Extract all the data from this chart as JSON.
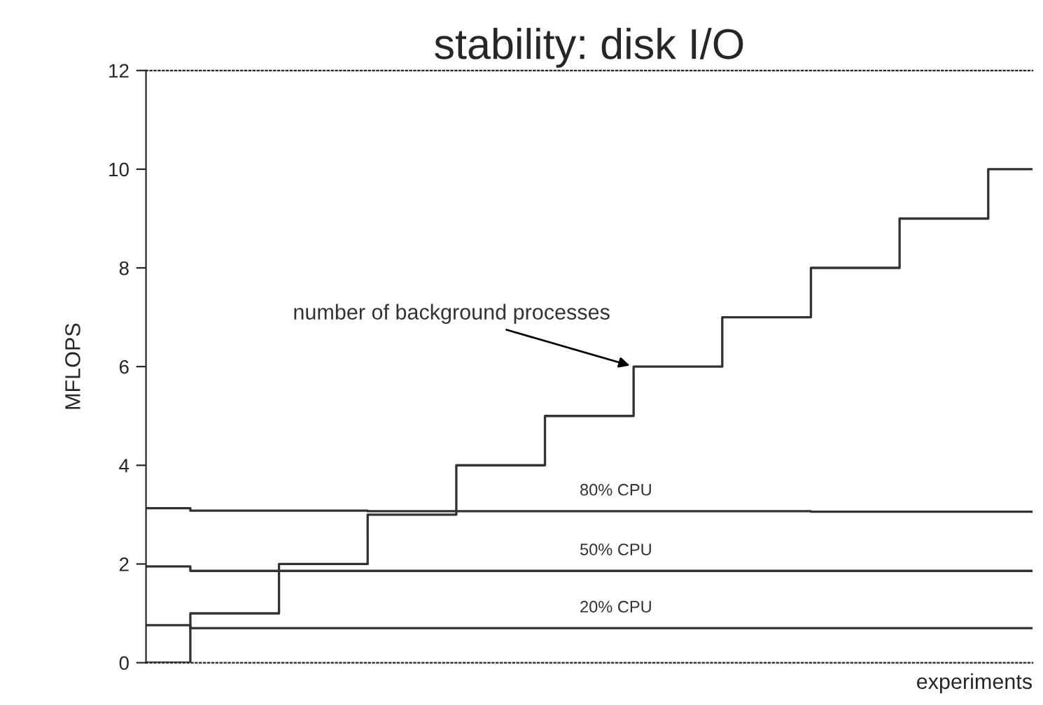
{
  "chart_data": {
    "type": "step",
    "title": "stability: disk I/O",
    "xlabel": "experiments",
    "ylabel": "MFLOPS",
    "categories": [
      null,
      null,
      null,
      null,
      null,
      null,
      null,
      null,
      null,
      null,
      null
    ],
    "series": [
      {
        "name": "number of background processes",
        "color": "#333333",
        "values": [
          0,
          1,
          2,
          3,
          4,
          5,
          6,
          7,
          8,
          9,
          10
        ]
      },
      {
        "name": "80% CPU",
        "color": "#333333",
        "values": [
          3.13,
          3.08,
          3.08,
          3.07,
          3.07,
          3.07,
          3.07,
          3.07,
          3.06,
          3.06,
          3.06
        ]
      },
      {
        "name": "50% CPU",
        "color": "#333333",
        "values": [
          1.95,
          1.86,
          1.86,
          1.86,
          1.86,
          1.86,
          1.86,
          1.86,
          1.86,
          1.86,
          1.86
        ]
      },
      {
        "name": "20% CPU",
        "color": "#333333",
        "values": [
          0.76,
          0.7,
          0.7,
          0.7,
          0.7,
          0.7,
          0.7,
          0.7,
          0.7,
          0.7,
          0.7
        ]
      }
    ],
    "ylim": [
      0,
      12
    ],
    "yticks": [
      0,
      2,
      4,
      6,
      8,
      10,
      12
    ],
    "grid": false,
    "legend": false,
    "line_style": "solid"
  }
}
